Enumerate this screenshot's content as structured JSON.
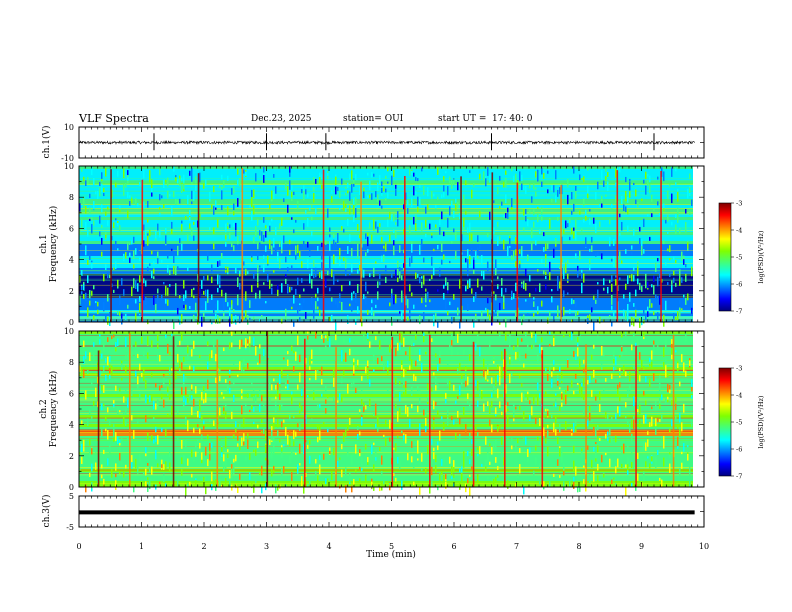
{
  "header": {
    "title": "VLF Spectra",
    "date": "Dec.23, 2025",
    "station": "station= OUI",
    "start_label": "start  UT  =",
    "start_time": "17: 40: 0"
  },
  "colors": {
    "colormap": [
      "#00007f",
      "#0000ff",
      "#0080ff",
      "#00ffff",
      "#40ff80",
      "#80ff00",
      "#ffff00",
      "#ff8000",
      "#ff0000",
      "#7f0000"
    ]
  },
  "chart_data": [
    {
      "id": "ch1_waveform",
      "type": "line",
      "ylabel": "ch.1(V)",
      "ylim": [
        -10,
        10
      ],
      "yticks": [
        "10",
        "-10"
      ],
      "x_range_min": [
        0,
        9.85
      ],
      "baseline": 0,
      "spikes_min": [
        1.2,
        3.0,
        3.95,
        6.6,
        9.2
      ]
    },
    {
      "id": "ch1_spectrogram",
      "type": "heatmap",
      "ylabel_top": "ch.1",
      "ylabel": "Frequency (kHz)",
      "ylim": [
        0,
        10
      ],
      "yticks": [
        "0",
        "2",
        "4",
        "6",
        "8",
        "10"
      ],
      "colorbar": {
        "label": "log(PSD)(V²/Hz)",
        "range": [
          -7,
          -3
        ],
        "ticks": [
          "-3",
          "-4",
          "-5",
          "-6",
          "-7"
        ]
      },
      "intense_band_khz": [
        1.6,
        3.2
      ],
      "vertical_streak_min": [
        0.5,
        1.0,
        1.9,
        2.6,
        3.9,
        4.5,
        5.2,
        6.1,
        6.6,
        7.0,
        7.7,
        8.6,
        9.3
      ]
    },
    {
      "id": "ch2_spectrogram",
      "type": "heatmap",
      "ylabel_top": "ch.2",
      "ylabel": "Frequency (kHz)",
      "ylim": [
        0,
        10
      ],
      "yticks": [
        "0",
        "2",
        "4",
        "6",
        "8",
        "10"
      ],
      "colorbar": {
        "label": "log(PSD)(V²/Hz)",
        "range": [
          -7,
          -3
        ],
        "ticks": [
          "-3",
          "-4",
          "-5",
          "-6",
          "-7"
        ]
      },
      "intense_band_khz": [
        3.3,
        3.8
      ],
      "vertical_streak_min": [
        0.3,
        0.8,
        1.5,
        2.2,
        3.0,
        3.6,
        4.1,
        5.0,
        5.6,
        6.3,
        6.8,
        7.4,
        8.1,
        8.9,
        9.5
      ]
    },
    {
      "id": "ch3_waveform",
      "type": "line",
      "ylabel": "ch.3(V)",
      "ylim": [
        -5,
        5
      ],
      "yticks": [
        "5",
        "-5"
      ],
      "x_range_min": [
        0,
        9.85
      ],
      "baseline": -0.3
    }
  ],
  "xaxis": {
    "label": "Time (min)",
    "ticks": [
      "0",
      "1",
      "2",
      "3",
      "4",
      "5",
      "6",
      "7",
      "8",
      "9",
      "10"
    ],
    "range": [
      0,
      10
    ]
  }
}
